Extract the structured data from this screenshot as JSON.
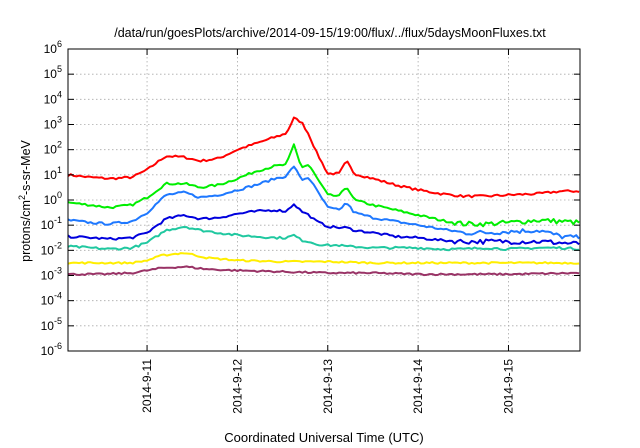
{
  "chart_data": {
    "type": "line",
    "title": "/data/run/goesPlots/archive/2014-09-15/19:00/flux/../flux/5daysMoonFluxes.txt",
    "xlabel": "Coordinated Universal Time (UTC)",
    "ylabel": "protons/cm²-s-sr-MeV",
    "y_scale": "log",
    "ylim_exponent": [
      -6,
      6
    ],
    "xlim": [
      "2014-09-10 03:00",
      "2014-09-15 19:00"
    ],
    "x_ticks": [
      "2014-09-11 00:00",
      "2014-09-12 00:00",
      "2014-09-13 00:00",
      "2014-09-14 00:00",
      "2014-09-15 00:00"
    ],
    "x_tick_labels": [
      "2014-9-11",
      "2014-9-12",
      "2014-9-13",
      "2014-9-14",
      "2014-9-15"
    ],
    "y_tick_exponents": [
      -6,
      -5,
      -4,
      -3,
      -2,
      -1,
      0,
      1,
      2,
      3,
      4,
      5,
      6
    ],
    "grid": true,
    "legend": "none",
    "series": [
      {
        "color": "#ff0000",
        "log10_values": [
          [
            "2014-09-10 03:00",
            1.0
          ],
          [
            "2014-09-10 09:00",
            0.9
          ],
          [
            "2014-09-10 14:00",
            0.85
          ],
          [
            "2014-09-10 20:00",
            0.9
          ],
          [
            "2014-09-11 00:00",
            1.2
          ],
          [
            "2014-09-11 05:00",
            1.75
          ],
          [
            "2014-09-11 10:00",
            1.7
          ],
          [
            "2014-09-11 14:00",
            1.55
          ],
          [
            "2014-09-11 19:00",
            1.65
          ],
          [
            "2014-09-12 00:00",
            2.0
          ],
          [
            "2014-09-12 05:00",
            2.25
          ],
          [
            "2014-09-12 10:00",
            2.5
          ],
          [
            "2014-09-12 13:00",
            2.65
          ],
          [
            "2014-09-12 15:00",
            3.25
          ],
          [
            "2014-09-12 17:00",
            3.1
          ],
          [
            "2014-09-12 19:00",
            2.6
          ],
          [
            "2014-09-12 21:00",
            1.9
          ],
          [
            "2014-09-13 00:00",
            1.05
          ],
          [
            "2014-09-13 03:00",
            1.05
          ],
          [
            "2014-09-13 05:00",
            1.55
          ],
          [
            "2014-09-13 07:00",
            1.05
          ],
          [
            "2014-09-13 12:00",
            0.85
          ],
          [
            "2014-09-13 18:00",
            0.6
          ],
          [
            "2014-09-14 00:00",
            0.4
          ],
          [
            "2014-09-14 06:00",
            0.25
          ],
          [
            "2014-09-14 12:00",
            0.15
          ],
          [
            "2014-09-14 18:00",
            0.15
          ],
          [
            "2014-09-15 00:00",
            0.2
          ],
          [
            "2014-09-15 08:00",
            0.25
          ],
          [
            "2014-09-15 14:00",
            0.35
          ],
          [
            "2014-09-15 19:00",
            0.35
          ]
        ]
      },
      {
        "color": "#00ee00",
        "log10_values": [
          [
            "2014-09-10 03:00",
            -0.1
          ],
          [
            "2014-09-10 09:00",
            -0.2
          ],
          [
            "2014-09-10 14:00",
            -0.3
          ],
          [
            "2014-09-10 20:00",
            -0.2
          ],
          [
            "2014-09-11 00:00",
            0.1
          ],
          [
            "2014-09-11 05:00",
            0.65
          ],
          [
            "2014-09-11 10:00",
            0.65
          ],
          [
            "2014-09-11 14:00",
            0.5
          ],
          [
            "2014-09-11 19:00",
            0.6
          ],
          [
            "2014-09-12 00:00",
            0.85
          ],
          [
            "2014-09-12 05:00",
            1.15
          ],
          [
            "2014-09-12 10:00",
            1.35
          ],
          [
            "2014-09-12 13:00",
            1.4
          ],
          [
            "2014-09-12 15:00",
            2.2
          ],
          [
            "2014-09-12 17:00",
            1.3
          ],
          [
            "2014-09-12 19:00",
            1.4
          ],
          [
            "2014-09-12 21:00",
            0.9
          ],
          [
            "2014-09-13 00:00",
            0.2
          ],
          [
            "2014-09-13 03:00",
            0.15
          ],
          [
            "2014-09-13 05:00",
            0.55
          ],
          [
            "2014-09-13 07:00",
            0.0
          ],
          [
            "2014-09-13 12:00",
            -0.2
          ],
          [
            "2014-09-13 18:00",
            -0.4
          ],
          [
            "2014-09-14 00:00",
            -0.6
          ],
          [
            "2014-09-14 06:00",
            -0.8
          ],
          [
            "2014-09-14 12:00",
            -0.95
          ],
          [
            "2014-09-14 18:00",
            -0.95
          ],
          [
            "2014-09-15 00:00",
            -0.9
          ],
          [
            "2014-09-15 08:00",
            -0.8
          ],
          [
            "2014-09-15 14:00",
            -0.85
          ],
          [
            "2014-09-15 19:00",
            -0.9
          ]
        ]
      },
      {
        "color": "#1e78ff",
        "log10_values": [
          [
            "2014-09-10 03:00",
            -0.8
          ],
          [
            "2014-09-10 09:00",
            -0.9
          ],
          [
            "2014-09-10 14:00",
            -0.95
          ],
          [
            "2014-09-10 20:00",
            -0.85
          ],
          [
            "2014-09-11 00:00",
            -0.5
          ],
          [
            "2014-09-11 05:00",
            0.2
          ],
          [
            "2014-09-11 10:00",
            0.3
          ],
          [
            "2014-09-11 14:00",
            0.1
          ],
          [
            "2014-09-11 19:00",
            0.2
          ],
          [
            "2014-09-12 00:00",
            0.4
          ],
          [
            "2014-09-12 05:00",
            0.6
          ],
          [
            "2014-09-12 10:00",
            0.85
          ],
          [
            "2014-09-12 13:00",
            0.95
          ],
          [
            "2014-09-12 15:00",
            1.35
          ],
          [
            "2014-09-12 17:00",
            0.8
          ],
          [
            "2014-09-12 19:00",
            0.9
          ],
          [
            "2014-09-12 21:00",
            0.4
          ],
          [
            "2014-09-13 00:00",
            -0.3
          ],
          [
            "2014-09-13 03:00",
            -0.4
          ],
          [
            "2014-09-13 05:00",
            -0.1
          ],
          [
            "2014-09-13 07:00",
            -0.5
          ],
          [
            "2014-09-13 12:00",
            -0.7
          ],
          [
            "2014-09-13 18:00",
            -0.85
          ],
          [
            "2014-09-14 00:00",
            -1.0
          ],
          [
            "2014-09-14 06:00",
            -1.15
          ],
          [
            "2014-09-14 12:00",
            -1.3
          ],
          [
            "2014-09-14 18:00",
            -1.3
          ],
          [
            "2014-09-15 00:00",
            -1.25
          ],
          [
            "2014-09-15 08:00",
            -1.2
          ],
          [
            "2014-09-15 14:00",
            -1.45
          ],
          [
            "2014-09-15 19:00",
            -1.5
          ]
        ]
      },
      {
        "color": "#0000dd",
        "log10_values": [
          [
            "2014-09-10 03:00",
            -1.45
          ],
          [
            "2014-09-10 09:00",
            -1.5
          ],
          [
            "2014-09-10 14:00",
            -1.55
          ],
          [
            "2014-09-10 20:00",
            -1.5
          ],
          [
            "2014-09-11 00:00",
            -1.3
          ],
          [
            "2014-09-11 05:00",
            -0.75
          ],
          [
            "2014-09-11 10:00",
            -0.6
          ],
          [
            "2014-09-11 14:00",
            -0.75
          ],
          [
            "2014-09-11 19:00",
            -0.7
          ],
          [
            "2014-09-12 00:00",
            -0.55
          ],
          [
            "2014-09-12 05:00",
            -0.45
          ],
          [
            "2014-09-12 10:00",
            -0.4
          ],
          [
            "2014-09-12 13:00",
            -0.45
          ],
          [
            "2014-09-12 15:00",
            -0.15
          ],
          [
            "2014-09-12 17:00",
            -0.45
          ],
          [
            "2014-09-12 19:00",
            -0.6
          ],
          [
            "2014-09-12 21:00",
            -0.85
          ],
          [
            "2014-09-13 00:00",
            -1.05
          ],
          [
            "2014-09-13 03:00",
            -1.1
          ],
          [
            "2014-09-13 05:00",
            -1.1
          ],
          [
            "2014-09-13 07:00",
            -1.2
          ],
          [
            "2014-09-13 12:00",
            -1.3
          ],
          [
            "2014-09-13 18:00",
            -1.45
          ],
          [
            "2014-09-14 00:00",
            -1.5
          ],
          [
            "2014-09-14 06:00",
            -1.6
          ],
          [
            "2014-09-14 12:00",
            -1.65
          ],
          [
            "2014-09-14 18:00",
            -1.65
          ],
          [
            "2014-09-15 00:00",
            -1.65
          ],
          [
            "2014-09-15 08:00",
            -1.65
          ],
          [
            "2014-09-15 14:00",
            -1.7
          ],
          [
            "2014-09-15 19:00",
            -1.75
          ]
        ]
      },
      {
        "color": "#20c8a0",
        "log10_values": [
          [
            "2014-09-10 03:00",
            -1.85
          ],
          [
            "2014-09-10 09:00",
            -1.9
          ],
          [
            "2014-09-10 14:00",
            -1.95
          ],
          [
            "2014-09-10 20:00",
            -1.9
          ],
          [
            "2014-09-11 00:00",
            -1.7
          ],
          [
            "2014-09-11 05:00",
            -1.2
          ],
          [
            "2014-09-11 10:00",
            -1.05
          ],
          [
            "2014-09-11 14:00",
            -1.2
          ],
          [
            "2014-09-11 19:00",
            -1.3
          ],
          [
            "2014-09-12 00:00",
            -1.4
          ],
          [
            "2014-09-12 05:00",
            -1.45
          ],
          [
            "2014-09-12 10:00",
            -1.5
          ],
          [
            "2014-09-12 13:00",
            -1.5
          ],
          [
            "2014-09-12 15:00",
            -1.4
          ],
          [
            "2014-09-12 17:00",
            -1.6
          ],
          [
            "2014-09-12 19:00",
            -1.65
          ],
          [
            "2014-09-12 21:00",
            -1.75
          ],
          [
            "2014-09-13 00:00",
            -1.8
          ],
          [
            "2014-09-13 03:00",
            -1.8
          ],
          [
            "2014-09-13 05:00",
            -1.85
          ],
          [
            "2014-09-13 07:00",
            -1.85
          ],
          [
            "2014-09-13 12:00",
            -1.9
          ],
          [
            "2014-09-13 18:00",
            -1.9
          ],
          [
            "2014-09-14 00:00",
            -1.9
          ],
          [
            "2014-09-14 06:00",
            -1.95
          ],
          [
            "2014-09-14 12:00",
            -1.95
          ],
          [
            "2014-09-14 18:00",
            -1.9
          ],
          [
            "2014-09-15 00:00",
            -1.95
          ],
          [
            "2014-09-15 08:00",
            -1.9
          ],
          [
            "2014-09-15 14:00",
            -1.9
          ],
          [
            "2014-09-15 19:00",
            -1.95
          ]
        ]
      },
      {
        "color": "#ffee00",
        "log10_values": [
          [
            "2014-09-10 03:00",
            -2.5
          ],
          [
            "2014-09-10 12:00",
            -2.5
          ],
          [
            "2014-09-10 20:00",
            -2.5
          ],
          [
            "2014-09-11 00:00",
            -2.4
          ],
          [
            "2014-09-11 04:00",
            -2.2
          ],
          [
            "2014-09-11 10:00",
            -2.1
          ],
          [
            "2014-09-11 16:00",
            -2.3
          ],
          [
            "2014-09-12 00:00",
            -2.4
          ],
          [
            "2014-09-12 12:00",
            -2.45
          ],
          [
            "2014-09-13 00:00",
            -2.45
          ],
          [
            "2014-09-13 12:00",
            -2.5
          ],
          [
            "2014-09-14 00:00",
            -2.5
          ],
          [
            "2014-09-14 12:00",
            -2.5
          ],
          [
            "2014-09-15 00:00",
            -2.5
          ],
          [
            "2014-09-15 19:00",
            -2.5
          ]
        ]
      },
      {
        "color": "#993366",
        "log10_values": [
          [
            "2014-09-10 03:00",
            -2.95
          ],
          [
            "2014-09-10 12:00",
            -2.95
          ],
          [
            "2014-09-10 20:00",
            -2.9
          ],
          [
            "2014-09-11 00:00",
            -2.8
          ],
          [
            "2014-09-11 04:00",
            -2.7
          ],
          [
            "2014-09-11 10:00",
            -2.65
          ],
          [
            "2014-09-11 16:00",
            -2.75
          ],
          [
            "2014-09-12 00:00",
            -2.8
          ],
          [
            "2014-09-12 12:00",
            -2.85
          ],
          [
            "2014-09-13 00:00",
            -2.9
          ],
          [
            "2014-09-13 12:00",
            -2.9
          ],
          [
            "2014-09-14 00:00",
            -2.95
          ],
          [
            "2014-09-14 12:00",
            -2.95
          ],
          [
            "2014-09-15 00:00",
            -2.95
          ],
          [
            "2014-09-15 19:00",
            -2.9
          ]
        ]
      }
    ]
  }
}
